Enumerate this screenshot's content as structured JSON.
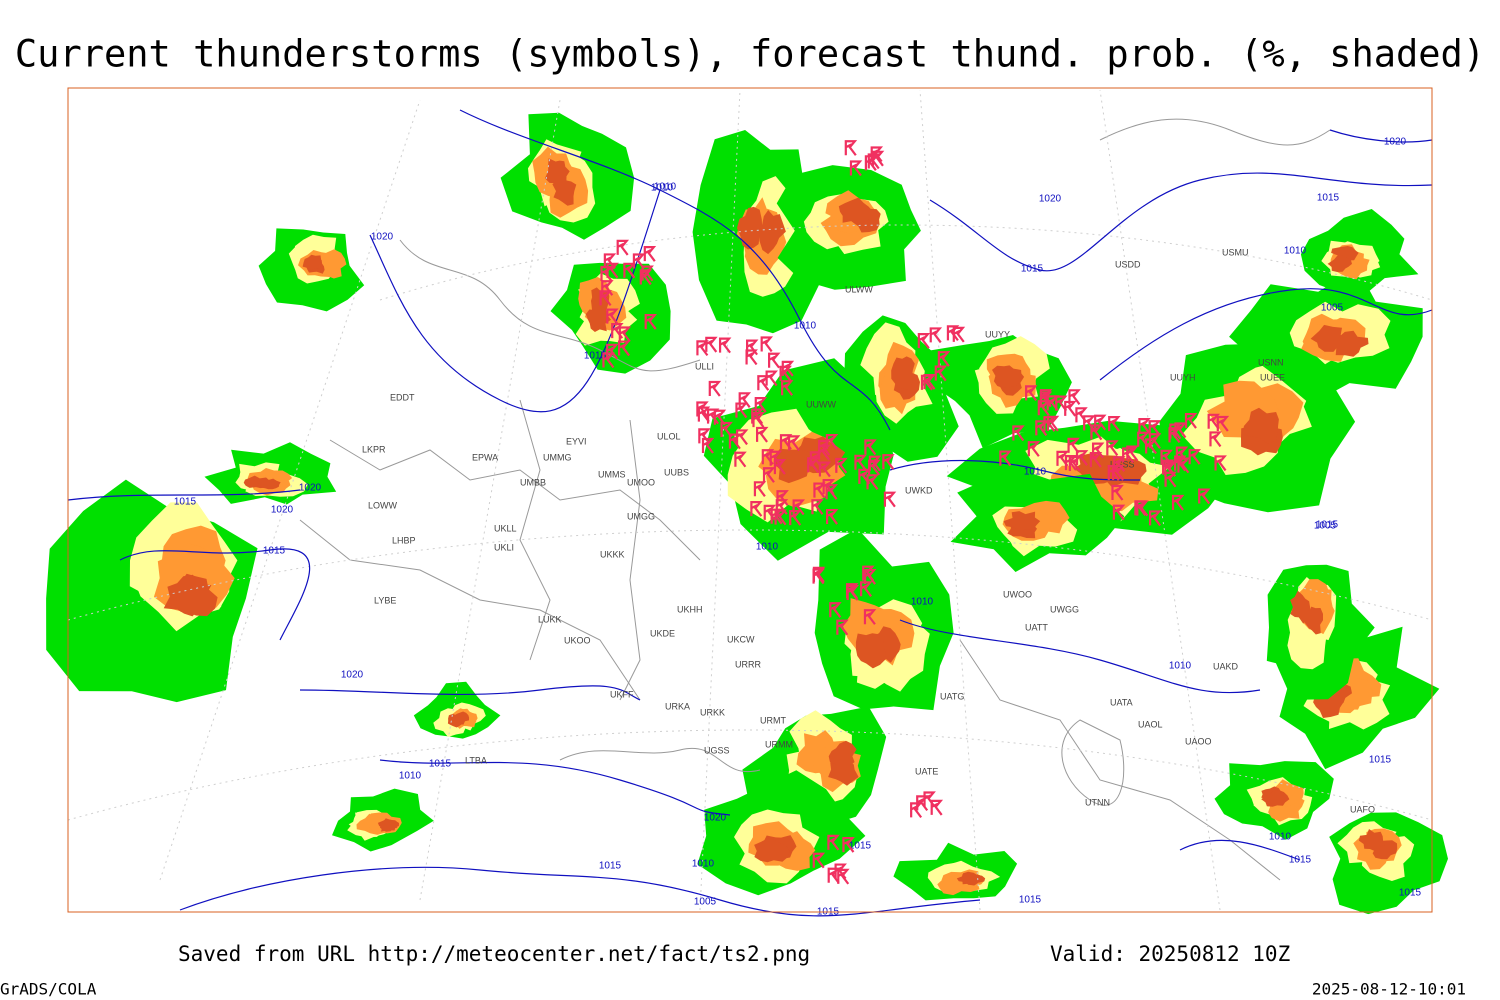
{
  "header": {
    "title": "Current thunderstorms (symbols), forecast thund. prob. (%, shaded)"
  },
  "footer": {
    "source": "Saved from URL http://meteocenter.net/fact/ts2.png",
    "valid": "Valid: 20250812 10Z",
    "software": "GrADS/COLA",
    "timestamp": "2025-08-12-10:01"
  },
  "isobar_labels": [
    "1020",
    "1010",
    "1020",
    "1015",
    "1010",
    "1015",
    "1010",
    "1015",
    "1005",
    "1010",
    "1015",
    "1020",
    "1020",
    "1015",
    "1020",
    "1010",
    "1020",
    "1015",
    "1010",
    "1010",
    "1005",
    "1010",
    "1015",
    "1015",
    "1005",
    "1010",
    "1015",
    "1015",
    "1010",
    "1015",
    "1010",
    "1015",
    "1015",
    "1020",
    "1015"
  ],
  "station_labels": [
    "EDDT",
    "LKPR",
    "EPWA",
    "UMMG",
    "LOWW",
    "LHBP",
    "UMBB",
    "UMMS",
    "UMOO",
    "UMGG",
    "UUBS",
    "ULOL",
    "EYVI",
    "UKLL",
    "UKLI",
    "UKKK",
    "LYBE",
    "LUKK",
    "UKOO",
    "UKDE",
    "UKHH",
    "UKCW",
    "URRR",
    "UKFF",
    "URKA",
    "URKK",
    "URMT",
    "URMM",
    "UGSS",
    "LTBA",
    "ULLI",
    "UUWW",
    "UUYY",
    "ULWW",
    "USDD",
    "UUYH",
    "USNN",
    "USSS",
    "UWKD",
    "UWOO",
    "UWGG",
    "UATT",
    "UAKD",
    "UATA",
    "UAOL",
    "UAOO",
    "UTNN",
    "UATE",
    "UATG",
    "UAFO",
    "USMU",
    "UUEE"
  ]
}
